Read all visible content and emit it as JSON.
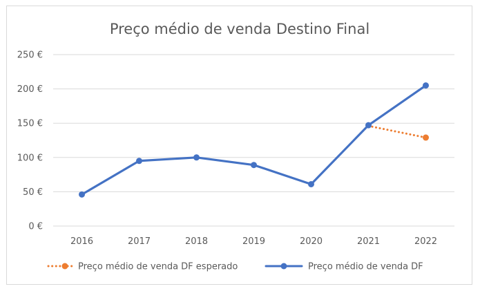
{
  "chart_data": {
    "type": "line",
    "title": "Preço médio de venda Destino Final",
    "xlabel": "",
    "ylabel": "",
    "categories": [
      "2016",
      "2017",
      "2018",
      "2019",
      "2020",
      "2021",
      "2022"
    ],
    "y_ticks": [
      "0 €",
      "50 €",
      "100 €",
      "150 €",
      "200 €",
      "250 €"
    ],
    "ylim": [
      0,
      250
    ],
    "grid": true,
    "legend_position": "bottom",
    "series": [
      {
        "name": "Preço médio de venda DF esperado",
        "style": "dotted",
        "color": "#ED7D31",
        "values": [
          null,
          null,
          null,
          null,
          null,
          146,
          129
        ]
      },
      {
        "name": "Preço médio de venda DF",
        "style": "solid",
        "color": "#4472C4",
        "values": [
          46,
          95,
          100,
          89,
          61,
          147,
          205
        ]
      }
    ]
  }
}
